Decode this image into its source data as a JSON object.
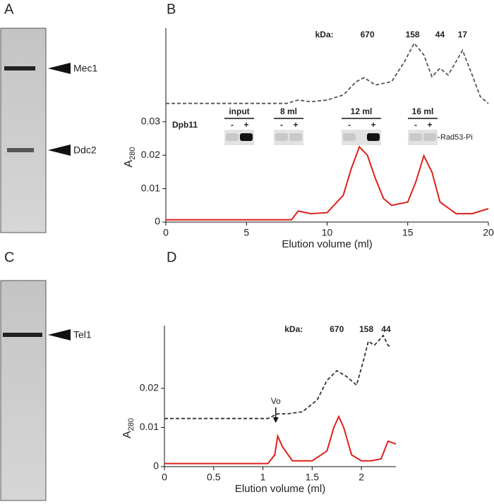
{
  "panels": [
    "A",
    "B",
    "C",
    "D"
  ],
  "gels": [
    {
      "bands": [
        "Mec1",
        "Ddc2"
      ]
    },
    {
      "bands": [
        "Tel1"
      ]
    }
  ],
  "blot": {
    "row_label": "Dpb11",
    "lanes": [
      "input",
      "8 ml",
      "12 ml",
      "16 ml"
    ],
    "signs": [
      "-",
      "+"
    ],
    "band_label": "Rad53-Pi"
  },
  "chart_data": [
    {
      "type": "line",
      "xlabel": "Elution volume (ml)",
      "ylabel": "A",
      "ylabel_subscript": "280",
      "xlim": [
        0,
        20
      ],
      "ylim": [
        0,
        0.058
      ],
      "xticks": [
        0,
        5,
        10,
        15,
        20
      ],
      "yticks": [
        0,
        0.01,
        0.02,
        0.03
      ],
      "markers": {
        "label": "kDa:",
        "values": [
          670,
          158,
          44,
          17
        ],
        "x": [
          12.5,
          15.3,
          17,
          18.4
        ]
      },
      "series": [
        {
          "color": "#e0201b",
          "dashed": false,
          "x": [
            0,
            7.8,
            8.2,
            9,
            10,
            11,
            11.5,
            12,
            12.5,
            13,
            13.5,
            14,
            15,
            15.5,
            16,
            16.5,
            17,
            18,
            19,
            20
          ],
          "values": [
            0.0007,
            0.0007,
            0.0033,
            0.0025,
            0.0028,
            0.008,
            0.016,
            0.0225,
            0.02,
            0.013,
            0.007,
            0.005,
            0.006,
            0.012,
            0.0198,
            0.015,
            0.006,
            0.0025,
            0.0025,
            0.004
          ]
        },
        {
          "color": "#555555",
          "dashed": true,
          "x": [
            0,
            7.5,
            8.2,
            9,
            10,
            11,
            11.8,
            12.3,
            13,
            14,
            14.8,
            15.4,
            16,
            16.5,
            17,
            17.5,
            18,
            18.4,
            19,
            19.5,
            20
          ],
          "values": [
            0.0355,
            0.0355,
            0.0365,
            0.036,
            0.0365,
            0.038,
            0.042,
            0.0432,
            0.041,
            0.042,
            0.048,
            0.0535,
            0.05,
            0.0435,
            0.046,
            0.044,
            0.048,
            0.0514,
            0.044,
            0.0375,
            0.0355
          ]
        }
      ]
    },
    {
      "type": "line",
      "xlabel": "Elution volume (ml)",
      "ylabel": "A",
      "ylabel_subscript": "280",
      "xlim": [
        0,
        2.35
      ],
      "ylim": [
        0,
        0.036
      ],
      "xticks": [
        0,
        0.5,
        1,
        1.5,
        2
      ],
      "yticks": [
        0,
        0.01,
        0.02
      ],
      "markers": {
        "label": "kDa:",
        "values": [
          670,
          158,
          44
        ],
        "x": [
          1.75,
          2.05,
          2.25
        ]
      },
      "annotation": {
        "text": "Vo",
        "x": 1.13
      },
      "series": [
        {
          "color": "#e0201b",
          "dashed": false,
          "x": [
            0,
            1.05,
            1.12,
            1.15,
            1.2,
            1.3,
            1.5,
            1.65,
            1.72,
            1.77,
            1.82,
            1.9,
            2.0,
            2.1,
            2.2,
            2.27,
            2.35
          ],
          "values": [
            0.0008,
            0.0008,
            0.003,
            0.0078,
            0.005,
            0.0015,
            0.0015,
            0.004,
            0.01,
            0.0128,
            0.01,
            0.003,
            0.0015,
            0.0015,
            0.002,
            0.0065,
            0.0058
          ]
        },
        {
          "color": "#333333",
          "dashed": true,
          "x": [
            0,
            1.05,
            1.15,
            1.25,
            1.4,
            1.55,
            1.65,
            1.75,
            1.85,
            1.95,
            2.02,
            2.07,
            2.1,
            2.13,
            2.17,
            2.22,
            2.27,
            2.3
          ],
          "values": [
            0.0123,
            0.0123,
            0.0135,
            0.0135,
            0.014,
            0.017,
            0.022,
            0.0245,
            0.023,
            0.0208,
            0.027,
            0.032,
            0.0315,
            0.031,
            0.032,
            0.0335,
            0.031,
            0.0305
          ]
        }
      ]
    }
  ]
}
